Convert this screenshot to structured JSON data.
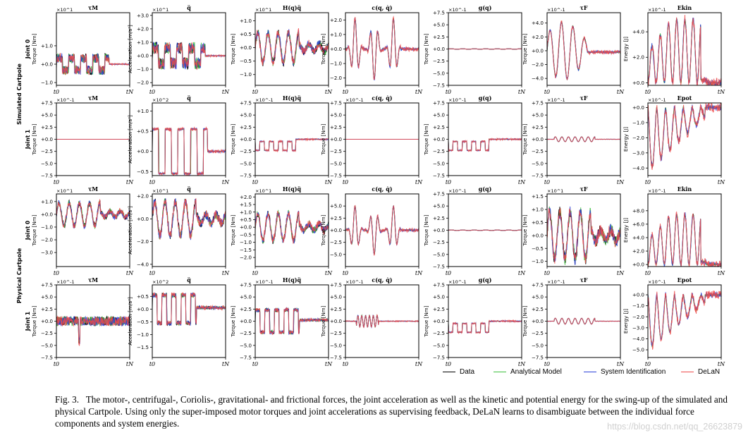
{
  "figure": {
    "caption_label": "Fig. 3.",
    "caption_text": "The motor-, centrifugal-, Coriolis-, gravitational- and frictional forces, the joint acceleration as well as the kinetic and potential energy for the swing-up of the simulated and physical Cartpole. Using only the super-imposed motor torques and joint accelerations as supervising feedback, DeLaN learns to disambiguate between the individual force components and system energies.",
    "watermark": "https://blog.csdn.net/qq_26623879",
    "group_labels": [
      "Simulated Cartpole",
      "Physical Cartpole"
    ],
    "x_tick_start": "t0",
    "x_tick_end": "tN"
  },
  "legend": [
    {
      "label": "Data",
      "color": "#000000"
    },
    {
      "label": "Analytical Model",
      "color": "#3cc03c"
    },
    {
      "label": "System Identification",
      "color": "#2a3fd8"
    },
    {
      "label": "DeLaN",
      "color": "#ef4a4a"
    }
  ],
  "chart_data": [
    {
      "type": "line",
      "row": 0,
      "col": 0,
      "title": "τM",
      "row_label": "Joint 0",
      "ylabel": "Torque [Nm]",
      "exponent": "×10^1",
      "ylim": [
        -1.15,
        2.8
      ],
      "yticks": [
        -1.0,
        0.0,
        1.0
      ],
      "xticks": [
        "t0",
        "tN"
      ],
      "signal": "noisy_step",
      "amp": 0.55,
      "series": [
        "Data",
        "Analytical Model",
        "System Identification",
        "DeLaN"
      ]
    },
    {
      "type": "line",
      "row": 0,
      "col": 1,
      "title": "q̈",
      "ylabel": "Acceleration [m/s²]",
      "exponent": "×10^1",
      "ylim": [
        -2.2,
        3.2
      ],
      "yticks": [
        -2.0,
        -1.0,
        0.0,
        1.0,
        2.0,
        3.0
      ],
      "xticks": [
        "t0",
        "tN"
      ],
      "signal": "noisy_step",
      "amp": 0.95,
      "series": [
        "Data",
        "Analytical Model",
        "System Identification",
        "DeLaN"
      ]
    },
    {
      "type": "line",
      "row": 0,
      "col": 2,
      "title": "H(q)q̈",
      "ylabel": "Torque [Nm]",
      "exponent": "×10^1",
      "ylim": [
        -1.4,
        1.3
      ],
      "yticks": [
        -1.0,
        -0.5,
        0.0,
        0.5,
        1.0
      ],
      "xticks": [
        "t0",
        "tN"
      ],
      "signal": "noisy_osc",
      "amp": 0.55,
      "series": [
        "Data",
        "Analytical Model",
        "System Identification",
        "DeLaN"
      ]
    },
    {
      "type": "line",
      "row": 0,
      "col": 3,
      "title": "c(q, q̇)",
      "ylabel": "Torque [Nm]",
      "exponent": "",
      "ylim": [
        -2.5,
        2.5
      ],
      "yticks": [
        -2.0,
        -1.0,
        0.0,
        1.0,
        2.0
      ],
      "xticks": [
        "t0",
        "tN"
      ],
      "signal": "spikes",
      "amp": 2.1,
      "series": [
        "Data",
        "Analytical Model",
        "System Identification",
        "DeLaN"
      ]
    },
    {
      "type": "line",
      "row": 0,
      "col": 4,
      "title": "g(q)",
      "ylabel": "Torque [Nm]",
      "exponent": "×10^-1",
      "ylim": [
        -7.5,
        7.5
      ],
      "yticks": [
        -7.5,
        -5.0,
        -2.5,
        0.0,
        2.5,
        5.0,
        7.5
      ],
      "xticks": [
        "t0",
        "tN"
      ],
      "signal": "flat",
      "amp": 0.15,
      "series": [
        "Data",
        "Analytical Model",
        "System Identification",
        "DeLaN"
      ]
    },
    {
      "type": "line",
      "row": 0,
      "col": 5,
      "title": "τF",
      "ylabel": "Torque [Nm]",
      "exponent": "×10^-1",
      "ylim": [
        -5,
        5.5
      ],
      "yticks": [
        -4.0,
        -2.0,
        0.0,
        2.0,
        4.0
      ],
      "xticks": [
        "t0",
        "tN"
      ],
      "signal": "damped_osc",
      "amp": 4.2,
      "series": [
        "Data",
        "Analytical Model",
        "System Identification",
        "DeLaN"
      ]
    },
    {
      "type": "line",
      "row": 0,
      "col": 6,
      "title": "Ekin",
      "ylabel": "Energy [J]",
      "exponent": "×10^-1",
      "ylim": [
        -0.2,
        5.5
      ],
      "yticks": [
        0.0,
        2.0,
        4.0
      ],
      "xticks": [
        "t0",
        "tN"
      ],
      "signal": "energy_pulse",
      "amp": 5.0,
      "series": [
        "Data",
        "Analytical Model",
        "System Identification",
        "DeLaN"
      ]
    },
    {
      "type": "line",
      "row": 1,
      "col": 0,
      "title": "τM",
      "row_label": "Joint 1",
      "ylabel": "Torque [Nm]",
      "exponent": "×10^-1",
      "ylim": [
        -7.5,
        7.5
      ],
      "yticks": [
        -7.5,
        -5.0,
        -2.5,
        0.0,
        2.5,
        5.0,
        7.5
      ],
      "xticks": [
        "t0",
        "tN"
      ],
      "signal": "zero",
      "amp": 0,
      "series": [
        "Data",
        "Analytical Model",
        "System Identification",
        "DeLaN"
      ]
    },
    {
      "type": "line",
      "row": 1,
      "col": 1,
      "title": "q̈",
      "ylabel": "Acceleration [m/s²]",
      "exponent": "×10^2",
      "ylim": [
        -0.6,
        1.2
      ],
      "yticks": [
        -0.5,
        0.0,
        0.5,
        1.0
      ],
      "xticks": [
        "t0",
        "tN"
      ],
      "signal": "square",
      "amp": 0.55,
      "series": [
        "Data",
        "Analytical Model",
        "System Identification",
        "DeLaN"
      ]
    },
    {
      "type": "line",
      "row": 1,
      "col": 2,
      "title": "H(q)q̈",
      "ylabel": "Torque [Nm]",
      "exponent": "×10^-1",
      "ylim": [
        -7.5,
        7.5
      ],
      "yticks": [
        -7.5,
        -5.0,
        -2.5,
        0.0,
        2.5,
        5.0,
        7.5
      ],
      "xticks": [
        "t0",
        "tN"
      ],
      "signal": "square_small",
      "amp": 2.3,
      "series": [
        "Data",
        "Analytical Model",
        "System Identification",
        "DeLaN"
      ]
    },
    {
      "type": "line",
      "row": 1,
      "col": 3,
      "title": "c(q, q̇)",
      "ylabel": "Torque [Nm]",
      "exponent": "×10^-1",
      "ylim": [
        -7.5,
        7.5
      ],
      "yticks": [
        -7.5,
        -5.0,
        -2.5,
        0.0,
        2.5,
        5.0,
        7.5
      ],
      "xticks": [
        "t0",
        "tN"
      ],
      "signal": "zero",
      "amp": 0,
      "series": [
        "Data",
        "Analytical Model",
        "System Identification",
        "DeLaN"
      ]
    },
    {
      "type": "line",
      "row": 1,
      "col": 4,
      "title": "g(q)",
      "ylabel": "Torque [Nm]",
      "exponent": "×10^-1",
      "ylim": [
        -7.5,
        7.5
      ],
      "yticks": [
        -7.5,
        -5.0,
        -2.5,
        0.0,
        2.5,
        5.0,
        7.5
      ],
      "xticks": [
        "t0",
        "tN"
      ],
      "signal": "square_small",
      "amp": 2.3,
      "series": [
        "Data",
        "Analytical Model",
        "System Identification",
        "DeLaN"
      ]
    },
    {
      "type": "line",
      "row": 1,
      "col": 5,
      "title": "τF",
      "ylabel": "Torque [Nm]",
      "exponent": "×10^-1",
      "ylim": [
        -7.5,
        7.5
      ],
      "yticks": [
        -7.5,
        -5.0,
        -2.5,
        0.0,
        2.5,
        5.0,
        7.5
      ],
      "xticks": [
        "t0",
        "tN"
      ],
      "signal": "tiny_osc",
      "amp": 0.5,
      "series": [
        "Data",
        "Analytical Model",
        "System Identification",
        "DeLaN"
      ]
    },
    {
      "type": "line",
      "row": 1,
      "col": 6,
      "title": "Epot",
      "ylabel": "Energy [J]",
      "exponent": "×10^-1",
      "ylim": [
        -4.5,
        0.3
      ],
      "yticks": [
        -4.0,
        -3.0,
        -2.0,
        -1.0,
        0.0
      ],
      "xticks": [
        "t0",
        "tN"
      ],
      "signal": "energy_neg",
      "amp": 4.2,
      "series": [
        "Data",
        "Analytical Model",
        "System Identification",
        "DeLaN"
      ]
    },
    {
      "type": "line",
      "row": 2,
      "col": 0,
      "title": "τM",
      "row_label": "Joint 0",
      "ylabel": "Torque [Nm]",
      "exponent": "×10^1",
      "ylim": [
        -4.1,
        1.6
      ],
      "yticks": [
        -3.0,
        -2.0,
        -1.0,
        0.0,
        1.0
      ],
      "xticks": [
        "t0",
        "tN"
      ],
      "signal": "noisy_osc",
      "amp": 0.9,
      "series": [
        "Data",
        "Analytical Model",
        "System Identification",
        "DeLaN"
      ]
    },
    {
      "type": "line",
      "row": 2,
      "col": 1,
      "title": "q̈",
      "ylabel": "Acceleration [m/s²]",
      "exponent": "×10^1",
      "ylim": [
        -4.2,
        2.2
      ],
      "yticks": [
        -4.0,
        -2.0,
        0.0,
        2.0
      ],
      "xticks": [
        "t0",
        "tN"
      ],
      "signal": "noisy_osc",
      "amp": 1.5,
      "series": [
        "Data",
        "Analytical Model",
        "System Identification",
        "DeLaN"
      ]
    },
    {
      "type": "line",
      "row": 2,
      "col": 2,
      "title": "H(q)q̈",
      "ylabel": "Torque [Nm]",
      "exponent": "×10^1",
      "ylim": [
        -2.6,
        2.2
      ],
      "yticks": [
        -2.0,
        -1.5,
        -1.0,
        -0.5,
        0.0,
        0.5,
        1.0,
        1.5,
        2.0
      ],
      "xticks": [
        "t0",
        "tN"
      ],
      "signal": "noisy_osc",
      "amp": 0.9,
      "series": [
        "Data",
        "Analytical Model",
        "System Identification",
        "DeLaN"
      ]
    },
    {
      "type": "line",
      "row": 2,
      "col": 3,
      "title": "c(q, q̇)",
      "ylabel": "Torque [Nm]",
      "exponent": "",
      "ylim": [
        -7.5,
        7.5
      ],
      "yticks": [
        -5.0,
        -2.5,
        0.0,
        2.5,
        5.0
      ],
      "xticks": [
        "t0",
        "tN"
      ],
      "signal": "spikes",
      "amp": 5.0,
      "series": [
        "Data",
        "Analytical Model",
        "System Identification",
        "DeLaN"
      ]
    },
    {
      "type": "line",
      "row": 2,
      "col": 4,
      "title": "g(q)",
      "ylabel": "Torque [Nm]",
      "exponent": "×10^-1",
      "ylim": [
        -7.5,
        7.5
      ],
      "yticks": [
        -7.5,
        -5.0,
        -2.5,
        0.0,
        2.5,
        5.0,
        7.5
      ],
      "xticks": [
        "t0",
        "tN"
      ],
      "signal": "flat",
      "amp": 0.2,
      "series": [
        "Data",
        "Analytical Model",
        "System Identification",
        "DeLaN"
      ]
    },
    {
      "type": "line",
      "row": 2,
      "col": 5,
      "title": "τF",
      "ylabel": "Torque [Nm]",
      "exponent": "×10^1",
      "ylim": [
        -1.2,
        1.6
      ],
      "yticks": [
        -1.0,
        -0.5,
        0.0,
        0.5,
        1.0,
        1.5
      ],
      "xticks": [
        "t0",
        "tN"
      ],
      "signal": "noisy_osc",
      "amp": 0.9,
      "series": [
        "Data",
        "Analytical Model",
        "System Identification",
        "DeLaN"
      ]
    },
    {
      "type": "line",
      "row": 2,
      "col": 6,
      "title": "Ekin",
      "ylabel": "Energy [J]",
      "exponent": "×10^-1",
      "ylim": [
        -0.3,
        10.5
      ],
      "yticks": [
        0.0,
        2.0,
        4.0,
        6.0,
        8.0
      ],
      "xticks": [
        "t0",
        "tN"
      ],
      "signal": "energy_pulse",
      "amp": 7.5,
      "series": [
        "Data",
        "Analytical Model",
        "System Identification",
        "DeLaN"
      ]
    },
    {
      "type": "line",
      "row": 3,
      "col": 0,
      "title": "τM",
      "row_label": "Joint 1",
      "ylabel": "Torque [Nm]",
      "exponent": "×10^-1",
      "ylim": [
        -7.5,
        7.5
      ],
      "yticks": [
        -7.5,
        -5.0,
        -2.5,
        0.0,
        2.5,
        5.0,
        7.5
      ],
      "xticks": [
        "t0",
        "tN"
      ],
      "signal": "noisy_small",
      "amp": 1.0,
      "series": [
        "Data",
        "Analytical Model",
        "System Identification",
        "DeLaN"
      ]
    },
    {
      "type": "line",
      "row": 3,
      "col": 1,
      "title": "q̈",
      "ylabel": "Acceleration [m/s²]",
      "exponent": "×10^2",
      "ylim": [
        -1.9,
        0.95
      ],
      "yticks": [
        -1.5,
        -1.0,
        -0.5,
        0.0,
        0.5
      ],
      "xticks": [
        "t0",
        "tN"
      ],
      "signal": "square_noisy",
      "amp": 0.55,
      "series": [
        "Data",
        "Analytical Model",
        "System Identification",
        "DeLaN"
      ]
    },
    {
      "type": "line",
      "row": 3,
      "col": 2,
      "title": "H(q)q̈",
      "ylabel": "Torque [Nm]",
      "exponent": "×10^-1",
      "ylim": [
        -7.5,
        7.5
      ],
      "yticks": [
        -7.5,
        -5.0,
        -2.5,
        0.0,
        2.5,
        5.0,
        7.5
      ],
      "xticks": [
        "t0",
        "tN"
      ],
      "signal": "square_noisy",
      "amp": 2.3,
      "series": [
        "Data",
        "Analytical Model",
        "System Identification",
        "DeLaN"
      ]
    },
    {
      "type": "line",
      "row": 3,
      "col": 3,
      "title": "c(q, q̇)",
      "ylabel": "Torque [Nm]",
      "exponent": "×10^-1",
      "ylim": [
        -7.5,
        7.5
      ],
      "yticks": [
        -7.5,
        -5.0,
        -2.5,
        0.0,
        2.5,
        5.0,
        7.5
      ],
      "xticks": [
        "t0",
        "tN"
      ],
      "signal": "spikes_small",
      "amp": 1.5,
      "series": [
        "Data",
        "Analytical Model",
        "System Identification",
        "DeLaN"
      ]
    },
    {
      "type": "line",
      "row": 3,
      "col": 4,
      "title": "g(q)",
      "ylabel": "Torque [Nm]",
      "exponent": "×10^-1",
      "ylim": [
        -7.5,
        7.5
      ],
      "yticks": [
        -7.5,
        -5.0,
        -2.5,
        0.0,
        2.5,
        5.0,
        7.5
      ],
      "xticks": [
        "t0",
        "tN"
      ],
      "signal": "square_small",
      "amp": 2.3,
      "series": [
        "Data",
        "Analytical Model",
        "System Identification",
        "DeLaN"
      ]
    },
    {
      "type": "line",
      "row": 3,
      "col": 5,
      "title": "τF",
      "ylabel": "Torque [Nm]",
      "exponent": "×10^-1",
      "ylim": [
        -7.5,
        7.5
      ],
      "yticks": [
        -7.5,
        -5.0,
        -2.5,
        0.0,
        2.5,
        5.0,
        7.5
      ],
      "xticks": [
        "t0",
        "tN"
      ],
      "signal": "tiny_osc",
      "amp": 0.6,
      "series": [
        "Data",
        "Analytical Model",
        "System Identification",
        "DeLaN"
      ]
    },
    {
      "type": "line",
      "row": 3,
      "col": 6,
      "title": "Epot",
      "ylabel": "Energy [J]",
      "exponent": "×10^-1",
      "ylim": [
        -5.7,
        0.9
      ],
      "yticks": [
        -5.0,
        -4.0,
        -3.0,
        -2.0,
        -1.0,
        0.0
      ],
      "xticks": [
        "t0",
        "tN"
      ],
      "signal": "energy_neg",
      "amp": 5.0,
      "series": [
        "Data",
        "Analytical Model",
        "System Identification",
        "DeLaN"
      ]
    }
  ]
}
